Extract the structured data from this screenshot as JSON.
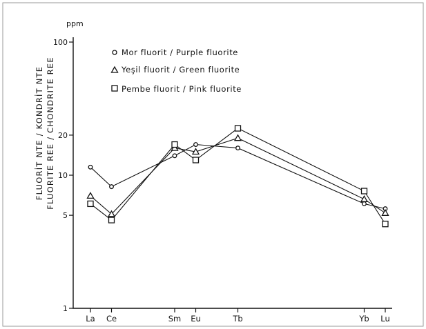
{
  "chart_data": {
    "type": "line",
    "y_scale": "log",
    "y_unit": "ppm",
    "ylim": [
      1,
      100
    ],
    "ylabel_lines": [
      "FLUORİT NTE / KONDRİT NTE",
      "FLUORITE REE / CHONDRITE REE"
    ],
    "y_ticks": [
      {
        "value": 1,
        "label": "1"
      },
      {
        "value": 5,
        "label": "5"
      },
      {
        "value": 10,
        "label": "10"
      },
      {
        "value": 20,
        "label": "20"
      },
      {
        "value": 100,
        "label": "100"
      }
    ],
    "x_categories": [
      {
        "label": "La",
        "x": 0
      },
      {
        "label": "Ce",
        "x": 1
      },
      {
        "label": "Sm",
        "x": 4
      },
      {
        "label": "Eu",
        "x": 5
      },
      {
        "label": "Tb",
        "x": 7
      },
      {
        "label": "Yb",
        "x": 13
      },
      {
        "label": "Lu",
        "x": 14
      }
    ],
    "series": [
      {
        "name": "Mor fluorit / Purple fluorite",
        "marker": "circle",
        "values": [
          11.5,
          8.2,
          14.0,
          17.0,
          16.0,
          6.1,
          5.6
        ]
      },
      {
        "name": "Yeşil fluorit / Green fluorite",
        "marker": "triangle",
        "values": [
          7.0,
          5.1,
          16.0,
          15.0,
          19.0,
          6.6,
          5.2
        ]
      },
      {
        "name": "Pembe fluorit / Pink fluorite",
        "marker": "square",
        "values": [
          6.1,
          4.6,
          17.0,
          13.0,
          22.5,
          7.6,
          4.3
        ]
      }
    ],
    "grid": false,
    "legend_position": "top-left"
  }
}
